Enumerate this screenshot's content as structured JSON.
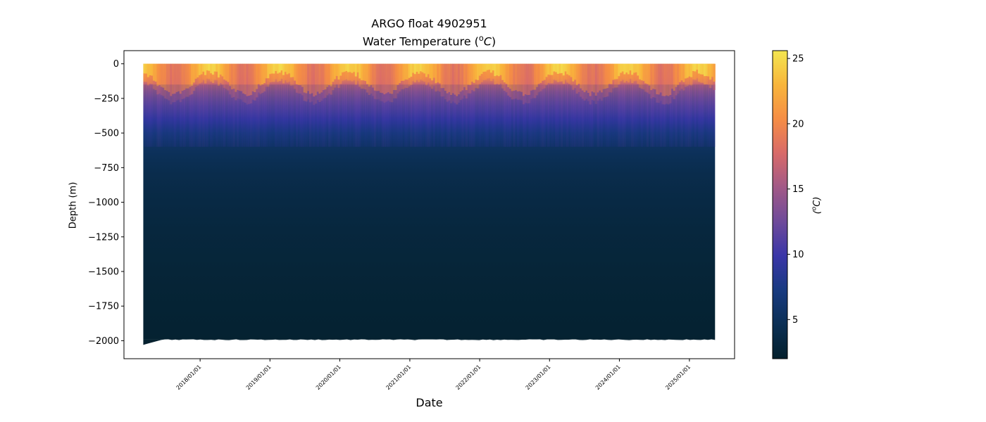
{
  "chart_data": {
    "type": "heatmap",
    "title_line1": "ARGO float 4902951",
    "title_line2_text": "Water Temperature (",
    "title_line2_unit_sup": "o",
    "title_line2_unit": "C",
    "title_line2_close": ")",
    "xlabel": "Date",
    "ylabel": "Depth (m)",
    "colorbar_label": "(oC)",
    "colorbar_label_parts": {
      "open": "(",
      "sup": "o",
      "unit": "C",
      "close": ")"
    },
    "x_range": [
      "2017-03-10",
      "2025-05-15"
    ],
    "x_start": "2017-03-10",
    "x_end": "2025-05-15",
    "y_range": [
      -2130,
      95
    ],
    "y_ticks": [
      0,
      -250,
      -500,
      -750,
      -1000,
      -1250,
      -1500,
      -1750,
      -2000
    ],
    "y_tick_labels": [
      "0",
      "−250",
      "−500",
      "−750",
      "−1000",
      "−1250",
      "−1500",
      "−1750",
      "−2000"
    ],
    "x_ticks": [
      "2018/01/01",
      "2019/01/01",
      "2020/01/01",
      "2021/01/01",
      "2022/01/01",
      "2023/01/01",
      "2024/01/01",
      "2025/01/01"
    ],
    "colorbar_range": [
      2.0,
      25.6
    ],
    "colorbar_ticks": [
      5,
      10,
      15,
      20,
      25
    ],
    "colormap": "thermal",
    "colormap_stops": [
      "#04202c",
      "#0b2f54",
      "#183a80",
      "#3a36a8",
      "#6e4a9a",
      "#a15987",
      "#d86a69",
      "#f58d45",
      "#f8b53b",
      "#f3e650"
    ],
    "max_profile_depth_m": -1990,
    "temperature_profile": {
      "depths_m": [
        0,
        -50,
        -100,
        -150,
        -200,
        -250,
        -300,
        -400,
        -500,
        -600,
        -700,
        -800,
        -1000,
        -1200,
        -1500,
        -1750,
        -2000
      ],
      "temps_c": [
        22.5,
        21.0,
        19.5,
        16.5,
        14.5,
        13.0,
        11.8,
        9.5,
        7.0,
        5.3,
        4.6,
        4.1,
        3.6,
        3.2,
        2.8,
        2.5,
        2.3
      ]
    },
    "grid": false,
    "legend": "colorbar-right"
  }
}
